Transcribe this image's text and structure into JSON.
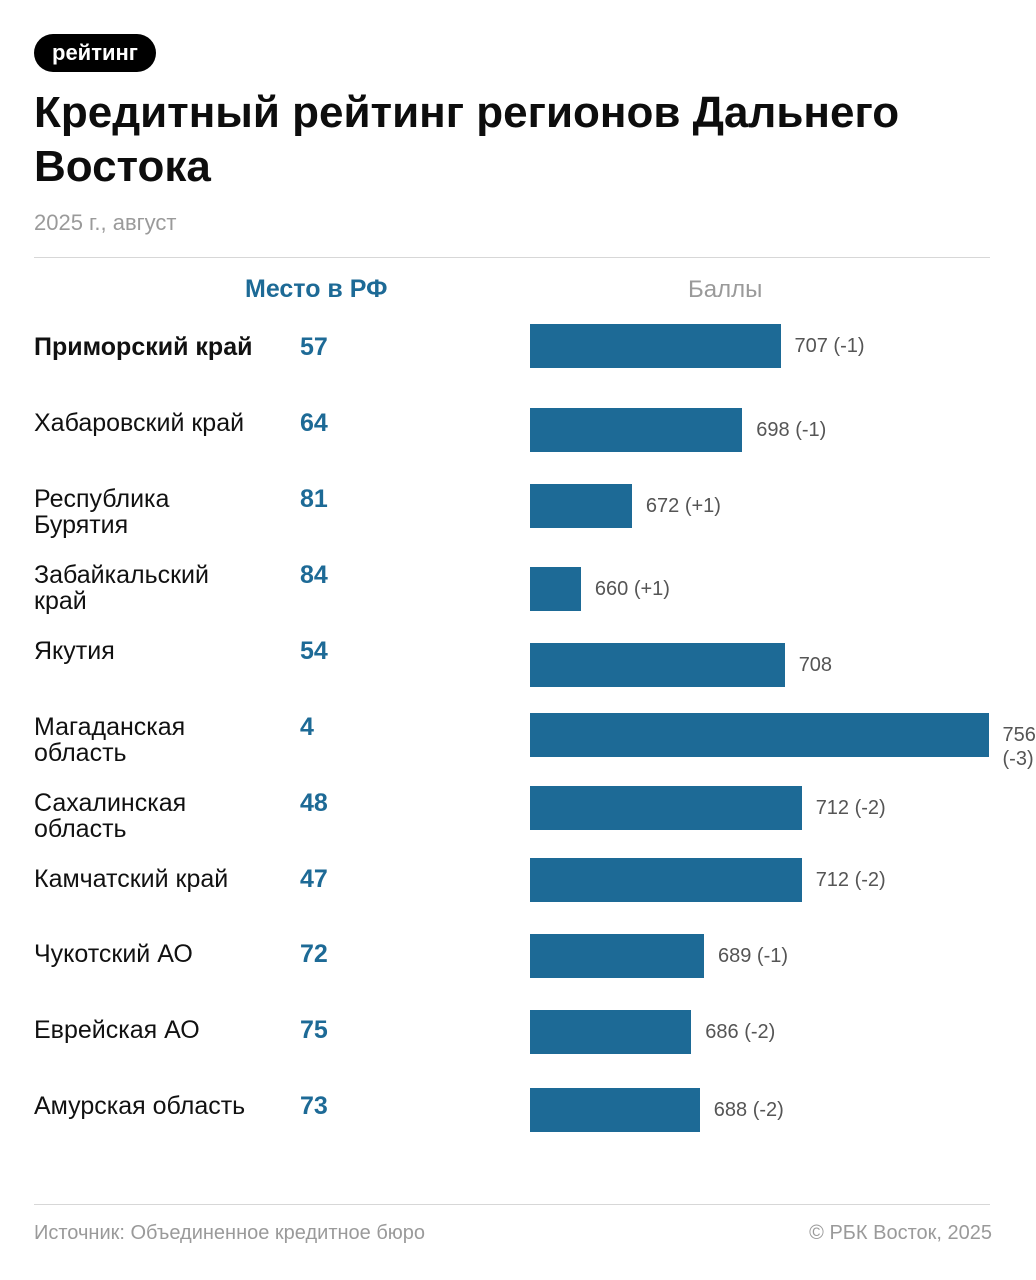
{
  "header": {
    "tag": "рейтинг",
    "title": "Кредитный рейтинг регионов Дальнего Востока",
    "subtitle": "2025 г., август"
  },
  "columns": {
    "rank": "Место в РФ",
    "score": "Баллы"
  },
  "footer": {
    "source": "Источник: Объединенное кредитное бюро",
    "copyright": "© РБК Восток, 2025"
  },
  "colors": {
    "bar": "#1d6a96",
    "rank_text": "#1d6a96"
  },
  "chart_data": {
    "type": "bar",
    "orientation": "horizontal",
    "categories": [
      "Приморский край",
      "Хабаровский край",
      "Республика Бурятия",
      "Забайкальский край",
      "Якутия",
      "Магаданская область",
      "Сахалинская область",
      "Камчатский край",
      "Чукотский АО",
      "Еврейская АО",
      "Амурская область"
    ],
    "highlight": "Приморский край",
    "ranks": [
      57,
      64,
      81,
      84,
      54,
      4,
      48,
      47,
      72,
      75,
      73
    ],
    "values": [
      707,
      698,
      672,
      660,
      708,
      756,
      712,
      712,
      689,
      686,
      688
    ],
    "value_labels": [
      "707 (-1)",
      "698 (-1)",
      "672 (+1)",
      "660 (+1)",
      "708",
      "756 (-3)",
      "712 (-2)",
      "712 (-2)",
      "689 (-1)",
      "686 (-2)",
      "688 (-2)"
    ]
  }
}
